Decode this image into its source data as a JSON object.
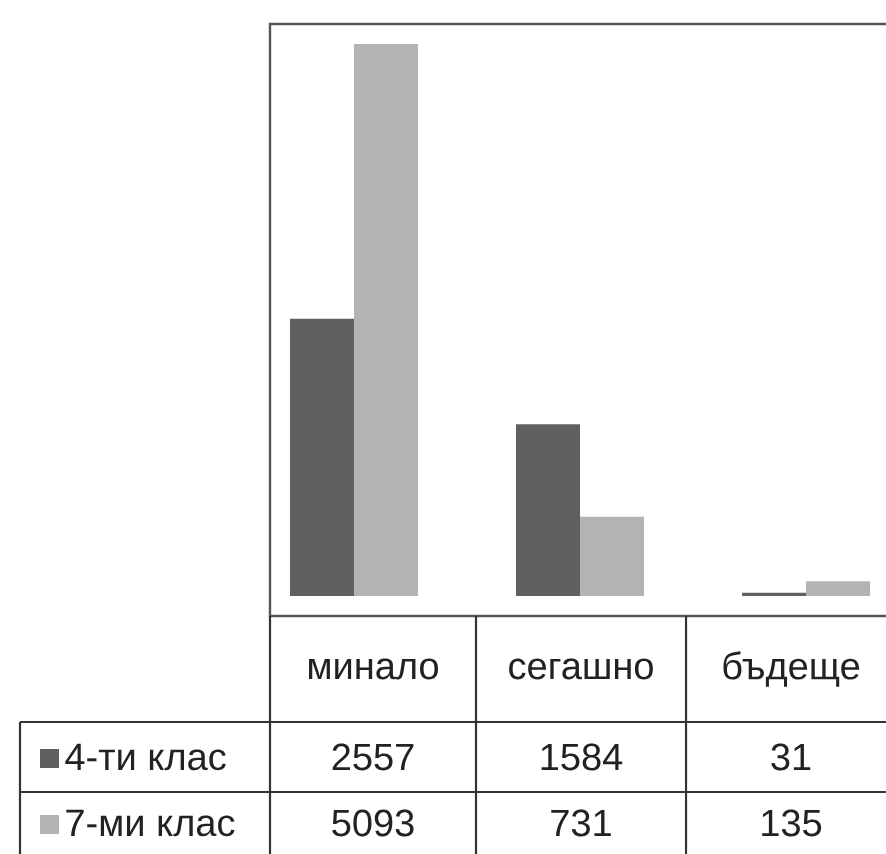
{
  "chart_data": {
    "type": "bar",
    "categories": [
      "минало",
      "сегашно",
      "бъдеще"
    ],
    "series": [
      {
        "name": "4-ти клас",
        "color": "#606060",
        "values": [
          2557,
          1584,
          31
        ]
      },
      {
        "name": "7-ми клас",
        "color": "#b3b3b3",
        "values": [
          5093,
          731,
          135
        ]
      }
    ],
    "data_labels": true,
    "legend": "bottom left"
  }
}
